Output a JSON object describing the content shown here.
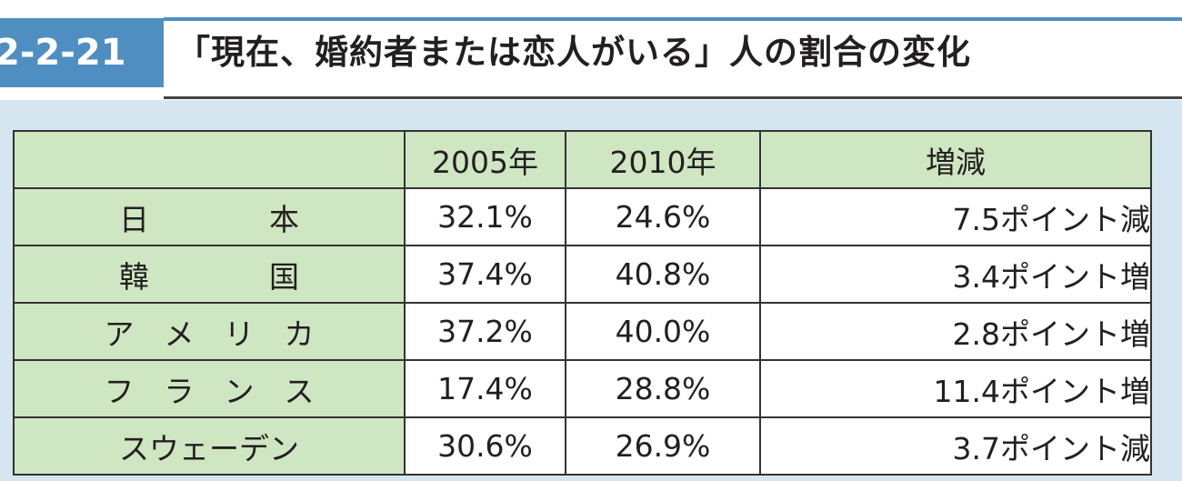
{
  "figure": {
    "number": "2-2-21",
    "title": "「現在、婚約者または恋人がいる」人の割合の変化"
  },
  "table": {
    "headers": [
      "",
      "2005年",
      "2010年",
      "増減"
    ],
    "rows": [
      {
        "country": "日　　　　本",
        "y2005": "32.1%",
        "y2010": "24.6%",
        "change": "7.5ポイント減"
      },
      {
        "country": "韓　　　　国",
        "y2005": "37.4%",
        "y2010": "40.8%",
        "change": "3.4ポイント増"
      },
      {
        "country": "ア　メ　リ　カ",
        "y2005": "37.2%",
        "y2010": "40.0%",
        "change": "2.8ポイント増"
      },
      {
        "country": "フ　ラ　ン　ス",
        "y2005": "17.4%",
        "y2010": "28.8%",
        "change": "11.4ポイント増"
      },
      {
        "country": "スウェーデン",
        "y2005": "30.6%",
        "y2010": "26.9%",
        "change": "3.7ポイント減"
      }
    ]
  },
  "colors": {
    "accent_blue": "#4f8ec0",
    "panel_bg": "#d6e6f1",
    "header_green": "#cfe6c2"
  }
}
